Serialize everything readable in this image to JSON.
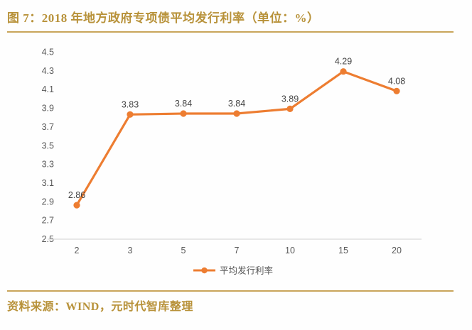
{
  "title": "图 7：2018 年地方政府专项债平均发行利率（单位：%）",
  "source": "资料来源：WIND，元时代智库整理",
  "legend": {
    "label": "平均发行利率"
  },
  "colors": {
    "gold_text": "#B8923A",
    "gold_rule": "#C9A55B",
    "series_orange": "#ED7D31",
    "axis_text": "#595959",
    "data_label": "#444444",
    "axis_line": "#D9D9D9"
  },
  "chart_data": {
    "type": "line",
    "title": "2018 年地方政府专项债平均发行利率",
    "unit": "%",
    "categories": [
      "2",
      "3",
      "5",
      "7",
      "10",
      "15",
      "20"
    ],
    "series": [
      {
        "name": "平均发行利率",
        "values": [
          2.86,
          3.83,
          3.84,
          3.84,
          3.89,
          4.29,
          4.08
        ],
        "labels": [
          "2.86",
          "3.83",
          "3.84",
          "3.84",
          "3.89",
          "4.29",
          "4.08"
        ]
      }
    ],
    "yticks": [
      "4.5",
      "4.3",
      "4.1",
      "3.9",
      "3.7",
      "3.5",
      "3.3",
      "3.1",
      "2.9",
      "2.7",
      "2.5"
    ],
    "ylim": [
      2.5,
      4.5
    ],
    "ytick_step": 0.2,
    "xlabel": "",
    "ylabel": "",
    "grid": false,
    "legend_position": "bottom",
    "marker": "circle",
    "data_labels": true
  }
}
